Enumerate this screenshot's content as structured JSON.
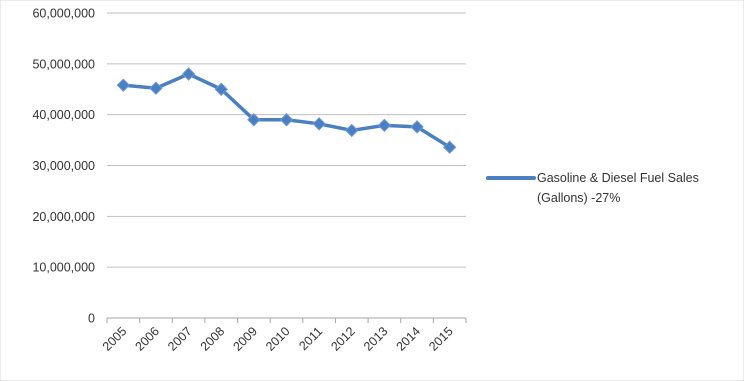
{
  "chart_data": {
    "type": "line",
    "title": "",
    "xlabel": "",
    "ylabel": "",
    "categories": [
      "2005",
      "2006",
      "2007",
      "2008",
      "2009",
      "2010",
      "2011",
      "2012",
      "2013",
      "2014",
      "2015"
    ],
    "series": [
      {
        "name": "Gasoline & Diesel Fuel Sales (Gallons) -27%",
        "name_lines": [
          "Gasoline & Diesel Fuel Sales",
          "(Gallons)   -27%"
        ],
        "color": "#4a7fc1",
        "values": [
          45800000,
          45200000,
          48000000,
          45000000,
          39000000,
          39000000,
          38200000,
          36900000,
          37900000,
          37600000,
          33600000
        ]
      }
    ],
    "ylim": [
      0,
      60000000
    ],
    "yticks": [
      0,
      10000000,
      20000000,
      30000000,
      40000000,
      50000000,
      60000000
    ],
    "ytick_labels": [
      "0",
      "10,000,000",
      "20,000,000",
      "30,000,000",
      "40,000,000",
      "50,000,000",
      "60,000,000"
    ],
    "grid": true,
    "legend": "right"
  }
}
